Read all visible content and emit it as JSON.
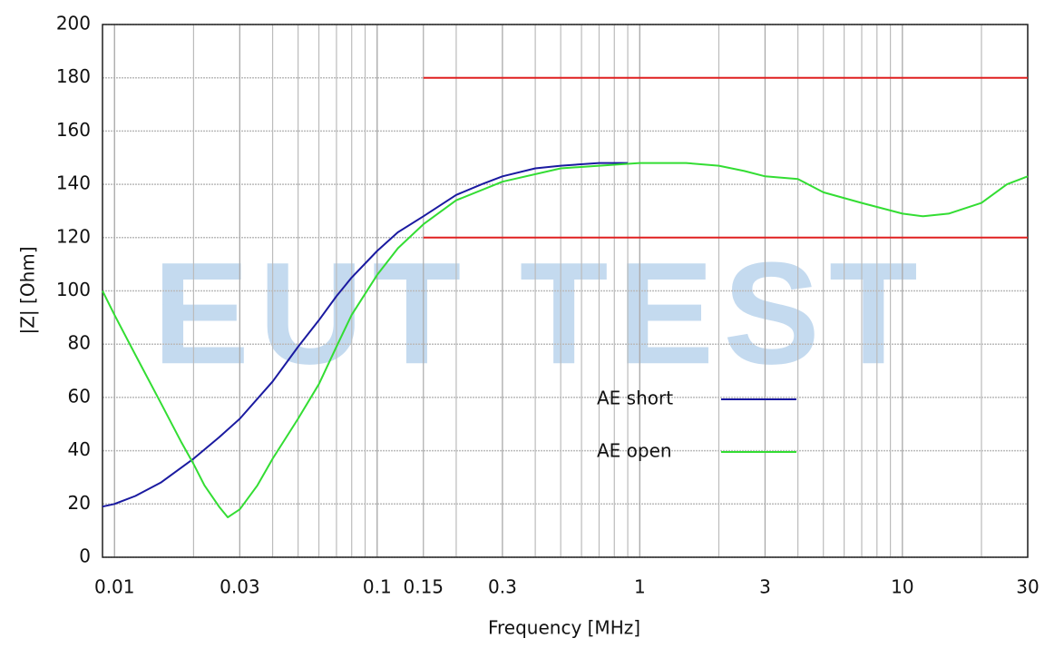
{
  "chart_data": {
    "type": "line",
    "xlabel": "Frequency [MHz]",
    "ylabel": "|Z| [Ohm]",
    "watermark": "EUT TEST",
    "xscale": "log",
    "grid": true,
    "xlim": [
      0.009,
      30
    ],
    "ylim": [
      0,
      200
    ],
    "xticks": [
      0.01,
      0.03,
      0.1,
      0.15,
      0.3,
      1,
      3,
      10,
      30
    ],
    "yticks": [
      0,
      20,
      40,
      60,
      80,
      100,
      120,
      140,
      160,
      180,
      200
    ],
    "limit_lines": [
      {
        "y": 180,
        "x": [
          0.15,
          30
        ],
        "color": "#e02020"
      },
      {
        "y": 120,
        "x": [
          0.15,
          30
        ],
        "color": "#e02020"
      }
    ],
    "series": [
      {
        "name": "AE short",
        "color": "#1a1aa0",
        "x": [
          0.009,
          0.01,
          0.012,
          0.015,
          0.02,
          0.025,
          0.03,
          0.04,
          0.05,
          0.06,
          0.07,
          0.08,
          0.1,
          0.12,
          0.15,
          0.2,
          0.25,
          0.3,
          0.4,
          0.5,
          0.7,
          0.9
        ],
        "values": [
          19,
          20,
          23,
          28,
          37,
          45,
          52,
          66,
          79,
          89,
          98,
          105,
          115,
          122,
          128,
          136,
          140,
          143,
          146,
          147,
          148,
          148
        ]
      },
      {
        "name": "AE open",
        "color": "#33dd33",
        "x": [
          0.009,
          0.01,
          0.012,
          0.015,
          0.018,
          0.02,
          0.022,
          0.025,
          0.027,
          0.03,
          0.035,
          0.04,
          0.05,
          0.06,
          0.07,
          0.08,
          0.1,
          0.12,
          0.15,
          0.2,
          0.3,
          0.5,
          0.7,
          1,
          1.5,
          2,
          2.5,
          3,
          4,
          5,
          7,
          10,
          12,
          15,
          20,
          25,
          30
        ],
        "values": [
          100,
          91,
          76,
          58,
          43,
          35,
          27,
          19,
          15,
          18,
          27,
          37,
          52,
          65,
          79,
          91,
          106,
          116,
          125,
          134,
          141,
          146,
          147,
          148,
          148,
          147,
          145,
          143,
          142,
          137,
          133,
          129,
          128,
          129,
          133,
          140,
          143
        ]
      }
    ]
  }
}
